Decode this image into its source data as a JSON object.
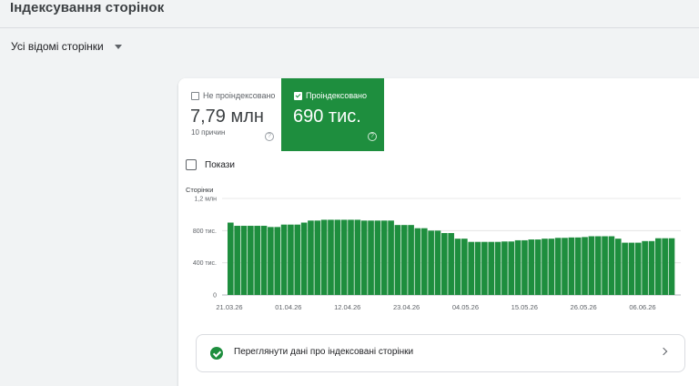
{
  "page": {
    "title": "Індексування сторінок",
    "filter_label": "Усі відомі сторінки"
  },
  "metrics": {
    "not_indexed": {
      "label": "Не проіндексовано",
      "value": "7,79 млн",
      "sub": "10 причин",
      "help": "?",
      "checked": false
    },
    "indexed": {
      "label": "Проіндексовано",
      "value": "690 тис.",
      "help": "?",
      "checked": true
    }
  },
  "impressions": {
    "label": "Покази",
    "checked": false
  },
  "colors": {
    "indexed_green": "#1e8e3e",
    "gridline": "#e0e0e0"
  },
  "chart_data": {
    "type": "bar",
    "ylabel": "Сторінки",
    "ylim": [
      0,
      1200000
    ],
    "y_ticks": [
      {
        "value": 0,
        "label": "0"
      },
      {
        "value": 400000,
        "label": "400 тис."
      },
      {
        "value": 800000,
        "label": "800 тис."
      },
      {
        "value": 1200000,
        "label": "1,2 млн"
      }
    ],
    "x_tick_labels": [
      "21.03.26",
      "01.04.26",
      "12.04.26",
      "23.04.26",
      "04.05.26",
      "15.05.26",
      "26.05.26",
      "06.06.26"
    ],
    "series": [
      {
        "color": "#1e8e3e",
        "values": [
          900000,
          860000,
          860000,
          860000,
          860000,
          860000,
          845000,
          845000,
          875000,
          875000,
          875000,
          900000,
          925000,
          925000,
          935000,
          935000,
          935000,
          935000,
          935000,
          935000,
          925000,
          925000,
          925000,
          925000,
          925000,
          870000,
          870000,
          870000,
          830000,
          830000,
          800000,
          800000,
          770000,
          770000,
          700000,
          700000,
          660000,
          660000,
          660000,
          660000,
          660000,
          665000,
          665000,
          680000,
          680000,
          690000,
          690000,
          700000,
          700000,
          710000,
          710000,
          715000,
          715000,
          720000,
          730000,
          730000,
          730000,
          730000,
          700000,
          650000,
          650000,
          650000,
          670000,
          670000,
          705000,
          705000,
          705000
        ]
      }
    ]
  },
  "link_card": {
    "text": "Переглянути дані про індексовані сторінки"
  }
}
